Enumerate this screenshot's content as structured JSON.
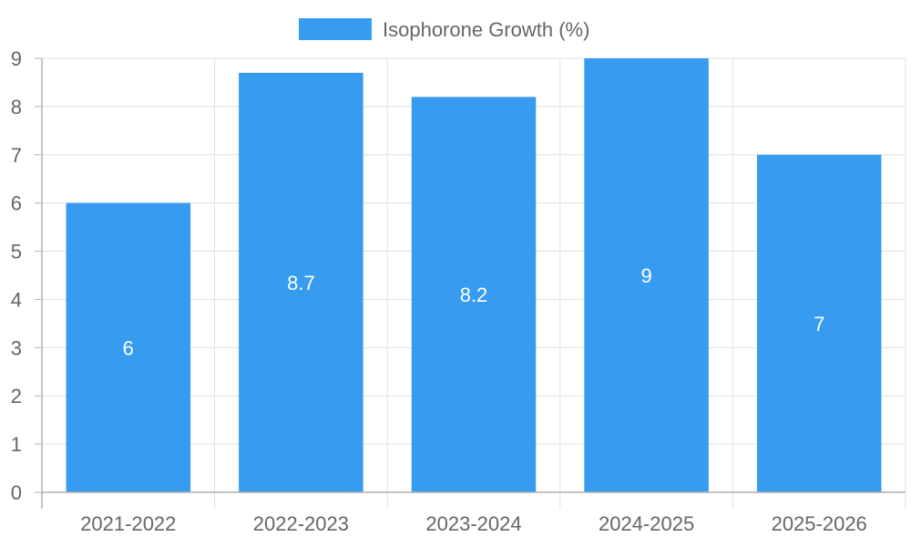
{
  "chart_data": {
    "type": "bar",
    "categories": [
      "2021-2022",
      "2022-2023",
      "2023-2024",
      "2024-2025",
      "2025-2026"
    ],
    "series": [
      {
        "name": "Isophorone Growth (%)",
        "values": [
          6,
          8.7,
          8.2,
          9,
          7
        ],
        "color": "#379bf0"
      }
    ],
    "data_labels": [
      "6",
      "8.7",
      "8.2",
      "9",
      "7"
    ],
    "y_ticks": [
      "0",
      "1",
      "2",
      "3",
      "4",
      "5",
      "6",
      "7",
      "8",
      "9"
    ],
    "ylim": [
      0,
      9
    ],
    "grid": true,
    "legend_position": "top-center",
    "grid_color": "#e0e0e0",
    "axis_color": "#b0b0b0",
    "text_color": "#666666"
  }
}
